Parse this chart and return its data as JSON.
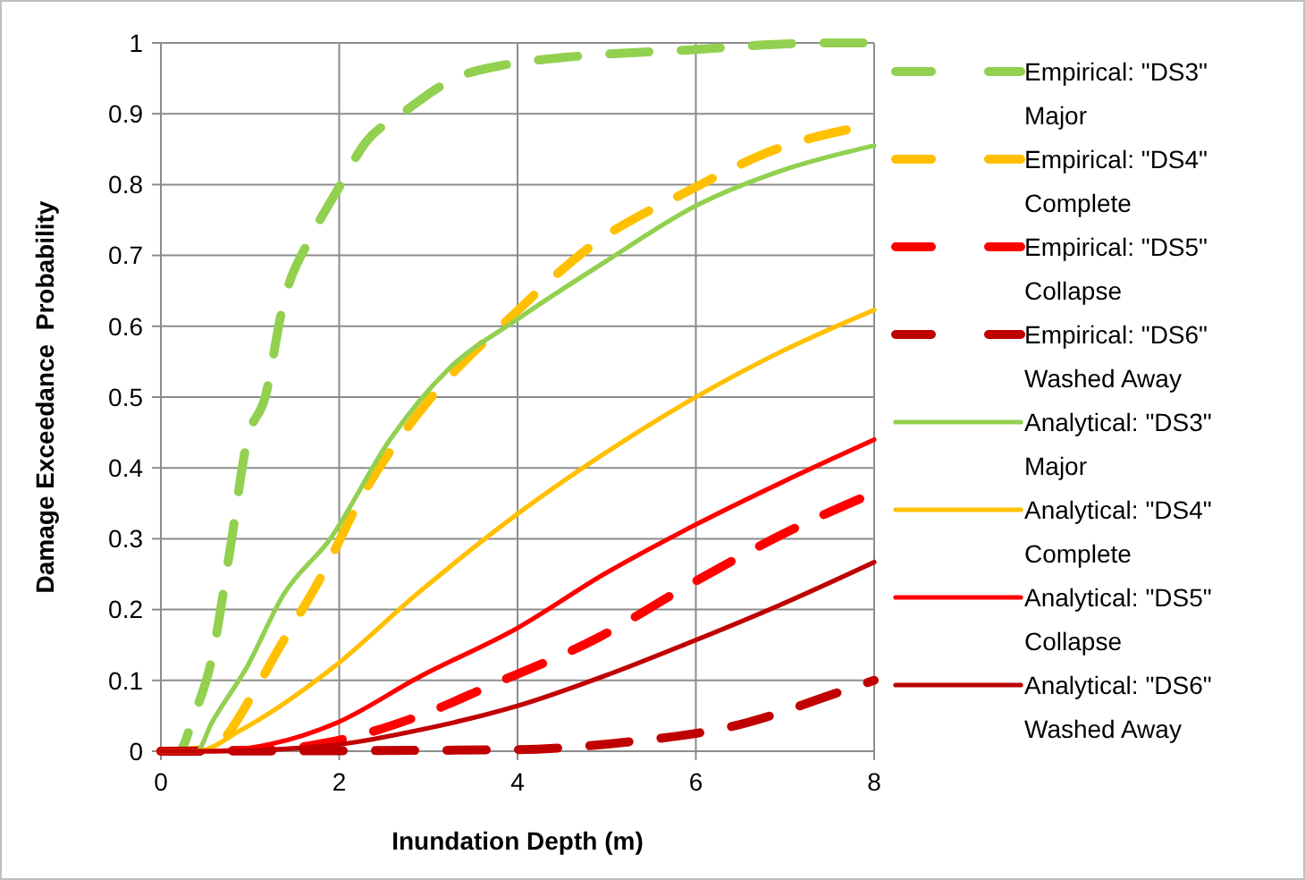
{
  "chart_data": {
    "type": "line",
    "xlabel": "Inundation Depth (m)",
    "ylabel": "Damage Exceedance  Probability",
    "xlim": [
      0,
      8
    ],
    "xticks": [
      0,
      2,
      4,
      6,
      8
    ],
    "ylim": [
      0,
      1
    ],
    "yticks": [
      0,
      0.1,
      0.2,
      0.3,
      0.4,
      0.5,
      0.6,
      0.7,
      0.8,
      0.9,
      1
    ],
    "grid": true,
    "legend": "right",
    "series": [
      {
        "name": "Empirical: \"DS3\" Major",
        "color": "#92d050",
        "line_style": "dashed",
        "x": [
          0,
          0.2,
          0.37,
          0.57,
          0.77,
          0.97,
          1.17,
          1.37,
          1.7,
          1.97,
          2.3,
          2.7,
          3.3,
          3.9,
          4.57,
          5.9,
          7.43,
          8
        ],
        "values": [
          0,
          0,
          0.05,
          0.13,
          0.28,
          0.44,
          0.5,
          0.63,
          0.73,
          0.79,
          0.86,
          0.9,
          0.95,
          0.97,
          0.98,
          0.99,
          1,
          1
        ]
      },
      {
        "name": "Empirical: \"DS4\" Complete",
        "color": "#ffc000",
        "line_style": "dashed",
        "x": [
          0,
          0.2,
          0.57,
          1.03,
          1.3,
          1.77,
          2.3,
          2.97,
          3.9,
          4.9,
          5.9,
          6.9,
          8
        ],
        "values": [
          0,
          0,
          0.005,
          0.08,
          0.14,
          0.24,
          0.37,
          0.49,
          0.61,
          0.72,
          0.79,
          0.85,
          0.885
        ]
      },
      {
        "name": "Empirical: \"DS5\" Collapse",
        "color": "#ff0000",
        "line_style": "dashed",
        "x": [
          0,
          1.23,
          1.9,
          2.9,
          3.7,
          4.9,
          5.9,
          7.03,
          8
        ],
        "values": [
          0,
          0.002,
          0.013,
          0.05,
          0.093,
          0.16,
          0.233,
          0.31,
          0.365
        ]
      },
      {
        "name": "Empirical: \"DS6\" Washed Away",
        "color": "#c00000",
        "line_style": "dashed",
        "x": [
          0,
          3.9,
          5.23,
          6.37,
          7.83,
          8
        ],
        "values": [
          0,
          0.002,
          0.013,
          0.034,
          0.093,
          0.1
        ]
      },
      {
        "name": "Analytical: \"DS3\" Major",
        "color": "#92d050",
        "line_style": "solid",
        "x": [
          0,
          0.4,
          0.57,
          0.97,
          1.37,
          1.9,
          2.57,
          3.23,
          4,
          4.97,
          6,
          6.97,
          8
        ],
        "values": [
          0,
          0,
          0.04,
          0.12,
          0.22,
          0.3,
          0.44,
          0.54,
          0.61,
          0.69,
          0.77,
          0.82,
          0.855
        ]
      },
      {
        "name": "Analytical: \"DS4\" Complete",
        "color": "#ffc000",
        "line_style": "solid",
        "x": [
          0,
          0.4,
          0.9,
          1.9,
          2.9,
          4,
          4.97,
          6,
          6.97,
          8
        ],
        "values": [
          0,
          0,
          0.03,
          0.115,
          0.225,
          0.335,
          0.42,
          0.5,
          0.565,
          0.623
        ]
      },
      {
        "name": "Analytical: \"DS5\" Collapse",
        "color": "#ff0000",
        "line_style": "solid",
        "x": [
          0,
          0.57,
          1.23,
          1.97,
          2.9,
          4,
          4.97,
          6,
          6.97,
          8
        ],
        "values": [
          0,
          0,
          0.01,
          0.04,
          0.105,
          0.174,
          0.25,
          0.32,
          0.38,
          0.44
        ]
      },
      {
        "name": "Analytical: \"DS6\" Washed Away",
        "color": "#c00000",
        "line_style": "solid",
        "x": [
          0,
          0.57,
          1.9,
          2.9,
          4,
          4.97,
          6,
          6.97,
          8
        ],
        "values": [
          0,
          0,
          0.008,
          0.03,
          0.064,
          0.106,
          0.157,
          0.208,
          0.267
        ]
      }
    ]
  }
}
